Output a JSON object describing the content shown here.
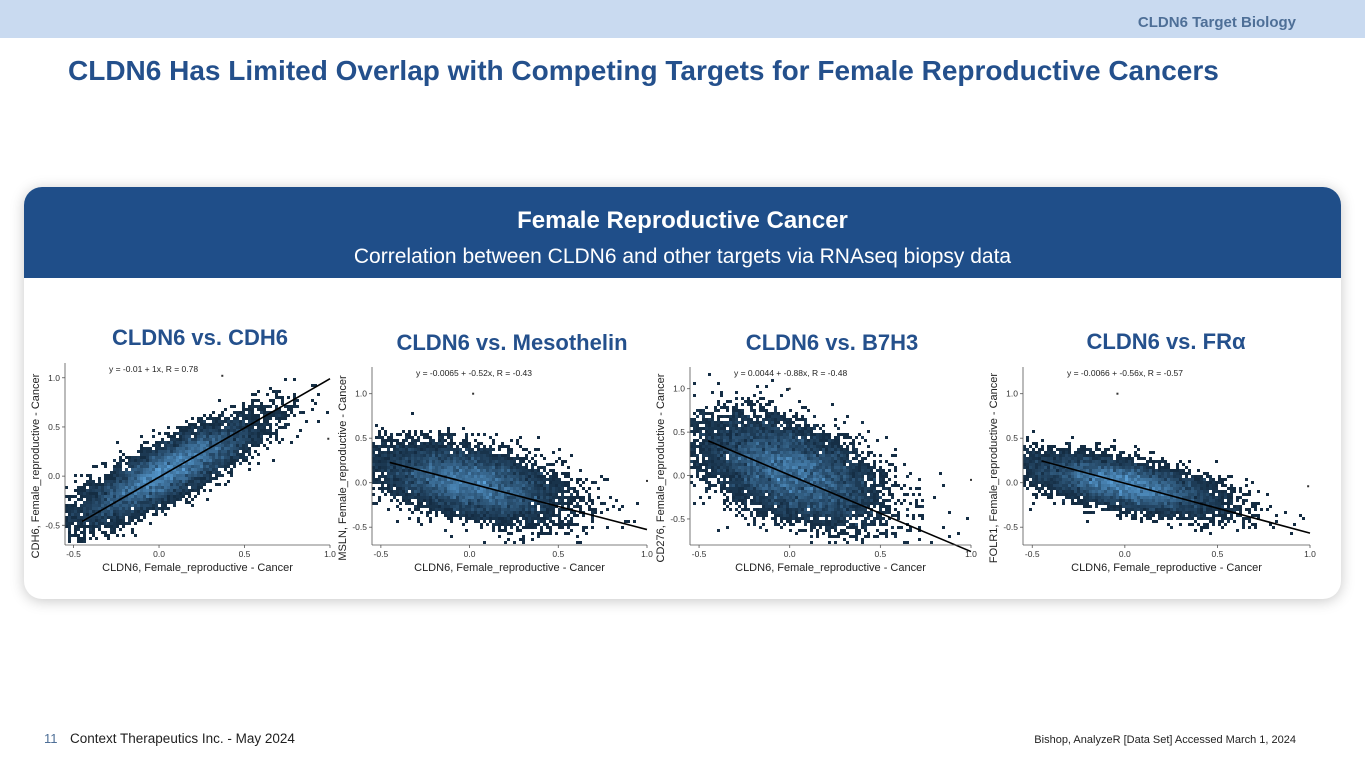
{
  "header": {
    "section_label": "CLDN6 Target Biology",
    "title": "CLDN6 Has Limited Overlap with Competing Targets for Female Reproductive Cancers"
  },
  "card": {
    "title": "Female Reproductive Cancer",
    "subtitle": "Correlation between CLDN6 and other targets via RNAseq biopsy data"
  },
  "colors": {
    "band": "#c9daf0",
    "title": "#24508c",
    "card_head": "#1f4e89",
    "density_dark": "#0f2438",
    "density_light": "#5aa0d8",
    "fit_line": "#000000"
  },
  "chart_data": [
    {
      "type": "scatter",
      "panel_title": "CLDN6 vs. CDH6",
      "xlabel": "CLDN6, Female_reproductive - Cancer",
      "ylabel": "CDH6, Female_reproductive - Cancer",
      "annotation": "y = -0.01 + 1x,  R = 0.78",
      "xlim": [
        -0.55,
        1.0
      ],
      "ylim": [
        -0.7,
        1.15
      ],
      "xticks": [
        "-0.5",
        "0.0",
        "0.5",
        "1.0"
      ],
      "yticks": [
        "-0.5",
        "0.0",
        "0.5",
        "1.0"
      ],
      "fit": {
        "intercept": -0.01,
        "slope": 1.0,
        "x_range": [
          -0.45,
          1.0
        ]
      },
      "cloud": {
        "center": [
          0.05,
          0.05
        ],
        "spread": [
          0.26,
          0.26
        ],
        "correlation": 0.85
      },
      "outliers": [
        [
          0.37,
          1.02
        ],
        [
          0.99,
          0.38
        ]
      ]
    },
    {
      "type": "scatter",
      "panel_title": "CLDN6 vs. Mesothelin",
      "xlabel": "CLDN6, Female_reproductive - Cancer",
      "ylabel": "MSLN, Female_reproductive - Cancer",
      "annotation": "y = -0.0065 + -0.52x,  R = -0.43",
      "xlim": [
        -0.55,
        1.0
      ],
      "ylim": [
        -0.7,
        1.3
      ],
      "xticks": [
        "-0.5",
        "0.0",
        "0.5",
        "1.0"
      ],
      "yticks": [
        "-0.5",
        "0.0",
        "0.5",
        "1.0"
      ],
      "fit": {
        "intercept": -0.0065,
        "slope": -0.52,
        "x_range": [
          -0.45,
          1.0
        ]
      },
      "cloud": {
        "center": [
          0.0,
          0.0
        ],
        "spread": [
          0.25,
          0.2
        ],
        "correlation": -0.45
      },
      "outliers": [
        [
          0.02,
          1.0
        ],
        [
          1.0,
          0.02
        ]
      ]
    },
    {
      "type": "scatter",
      "panel_title": "CLDN6 vs. B7H3",
      "xlabel": "CLDN6, Female_reproductive - Cancer",
      "ylabel": "CD276, Female_reproductive - Cancer",
      "annotation": "y = 0.0044 + -0.88x,  R = -0.48",
      "xlim": [
        -0.55,
        1.0
      ],
      "ylim": [
        -0.8,
        1.25
      ],
      "xticks": [
        "-0.5",
        "0.0",
        "0.5",
        "1.0"
      ],
      "yticks": [
        "-0.5",
        "0.0",
        "0.5",
        "1.0"
      ],
      "fit": {
        "intercept": 0.0044,
        "slope": -0.88,
        "x_range": [
          -0.45,
          1.0
        ]
      },
      "cloud": {
        "center": [
          0.0,
          0.05
        ],
        "spread": [
          0.24,
          0.3
        ],
        "correlation": -0.5
      },
      "outliers": [
        [
          0.0,
          1.0
        ],
        [
          1.0,
          -0.05
        ]
      ]
    },
    {
      "type": "scatter",
      "panel_title": "CLDN6 vs. FRα",
      "xlabel": "CLDN6, Female_reproductive - Cancer",
      "ylabel": "FOLR1, Female_reproductive - Cancer",
      "annotation": "y = -0.0066 + -0.56x,  R = -0.57",
      "xlim": [
        -0.55,
        1.0
      ],
      "ylim": [
        -0.7,
        1.3
      ],
      "xticks": [
        "-0.5",
        "0.0",
        "0.5",
        "1.0"
      ],
      "yticks": [
        "-0.5",
        "0.0",
        "0.5",
        "1.0"
      ],
      "fit": {
        "intercept": -0.0066,
        "slope": -0.56,
        "x_range": [
          -0.45,
          1.0
        ]
      },
      "cloud": {
        "center": [
          0.0,
          -0.02
        ],
        "spread": [
          0.25,
          0.16
        ],
        "correlation": -0.6
      },
      "outliers": [
        [
          -0.04,
          1.0
        ],
        [
          0.99,
          -0.04
        ]
      ]
    }
  ],
  "footer": {
    "page_number": "11",
    "company": "Context Therapeutics Inc. -  May 2024",
    "source": "Bishop, AnalyzeR [Data Set] Accessed March 1, 2024"
  }
}
